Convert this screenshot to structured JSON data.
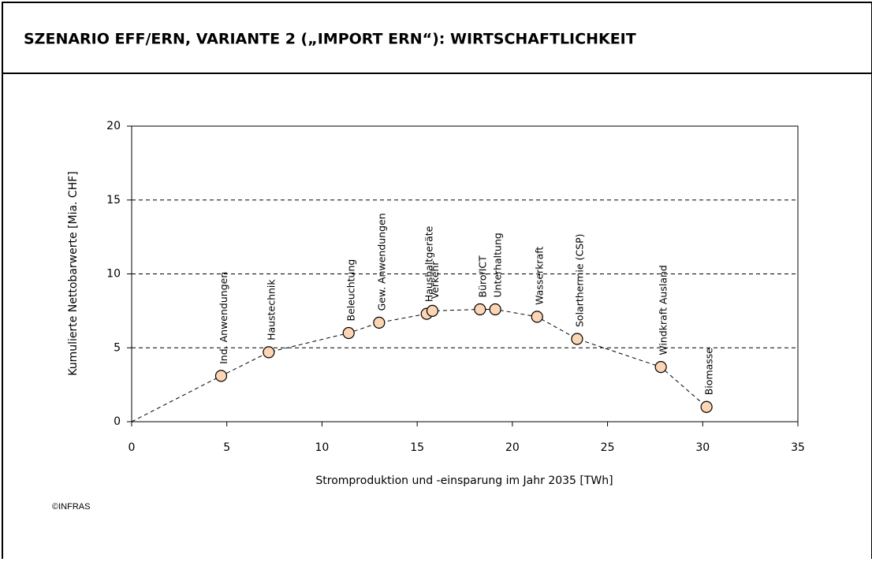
{
  "chart_data": {
    "type": "scatter",
    "title": "SZENARIO EFF/ERN, VARIANTE 2 („IMPORT ERN“): WIRTSCHAFTLICHKEIT",
    "xlabel": "Stromproduktion und -einsparung im Jahr 2035 [TWh]",
    "ylabel": "Kumulierte Nettobarwerte  [Mia. CHF]",
    "source": "©INFRAS",
    "series": [
      {
        "color": "#fcd5b4",
        "point_labels": [
          null,
          "Ind. Anwendungen",
          "Haustechnik",
          "Beleuchtung",
          "Gew. Anwendungen",
          "Haushaltgeräte",
          "Verkehr",
          "Büro/ICT",
          "Unterhaltung",
          "Wasserkraft",
          "Solarthermie (CSP)",
          "Windkraft Ausland",
          "Biomasse"
        ],
        "x": [
          0,
          4.7,
          7.2,
          11.4,
          13.0,
          15.5,
          15.8,
          18.3,
          19.1,
          21.3,
          23.4,
          27.8,
          30.2
        ],
        "values": [
          0,
          3.1,
          4.7,
          6.0,
          6.7,
          7.3,
          7.5,
          7.6,
          7.6,
          7.1,
          5.6,
          3.7,
          1.0
        ]
      }
    ],
    "xlim": [
      0,
      35
    ],
    "xticks": [
      0,
      5,
      10,
      15,
      20,
      25,
      30,
      35
    ],
    "ylim": [
      0,
      20
    ],
    "yticks": [
      0,
      5,
      10,
      15,
      20
    ],
    "grid": true
  }
}
